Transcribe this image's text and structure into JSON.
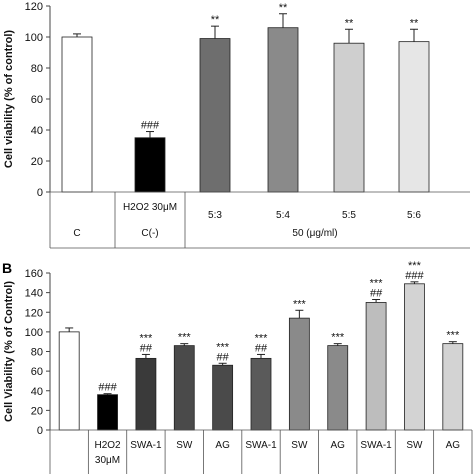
{
  "chart_data": [
    {
      "type": "bar",
      "panel_label": "",
      "ylabel": "Cell viability (% of control)",
      "ylim": [
        0,
        120
      ],
      "yticks": [
        0,
        20,
        40,
        60,
        80,
        100,
        120
      ],
      "categories": [
        "C",
        "C(-)",
        "5:3",
        "5:4",
        "5:5",
        "5:6"
      ],
      "category_sublabels": [
        "",
        "H2O2 30μM",
        "",
        "",
        "",
        ""
      ],
      "group_labels": [
        {
          "label": "C",
          "span": [
            0,
            0
          ]
        },
        {
          "label": "C(-)",
          "span": [
            1,
            1
          ]
        },
        {
          "label": "50 (μg/ml)",
          "span": [
            2,
            5
          ]
        }
      ],
      "values": [
        100,
        35,
        99,
        106,
        96,
        97
      ],
      "errors": [
        2,
        4,
        8,
        9,
        9,
        8
      ],
      "annotations": [
        "",
        "###",
        "**",
        "**",
        "**",
        "**"
      ],
      "colors": [
        "#ffffff",
        "#000000",
        "#6e6e6e",
        "#8a8a8a",
        "#cfcfcf",
        "#e6e6e6"
      ]
    },
    {
      "type": "bar",
      "panel_label": "B",
      "ylabel": "Cell Viability (% of Control)",
      "ylim": [
        0,
        160
      ],
      "yticks": [
        0,
        20,
        40,
        60,
        80,
        100,
        120,
        140,
        160
      ],
      "categories": [
        "",
        "H2O2 30μM",
        "SWA-1",
        "SW",
        "AG",
        "SWA-1",
        "SW",
        "AG",
        "SWA-1",
        "SW",
        "AG"
      ],
      "values": [
        100,
        36,
        73,
        86,
        66,
        73,
        114,
        86,
        130,
        149,
        88
      ],
      "errors": [
        4,
        1,
        4,
        2,
        2,
        4,
        8,
        2,
        3,
        2,
        2
      ],
      "annotations_top": [
        "",
        "",
        "***",
        "***",
        "***",
        "***",
        "***",
        "***",
        "***",
        "***",
        "***"
      ],
      "annotations_bottom": [
        "",
        "###",
        "##",
        "",
        "##",
        "##",
        "",
        "",
        "##",
        "###",
        ""
      ],
      "colors": [
        "#ffffff",
        "#000000",
        "#3a3a3a",
        "#4a4a4a",
        "#4a4a4a",
        "#5a5a5a",
        "#8a8a8a",
        "#8a8a8a",
        "#bdbdbd",
        "#d3d3d3",
        "#d3d3d3"
      ]
    }
  ]
}
